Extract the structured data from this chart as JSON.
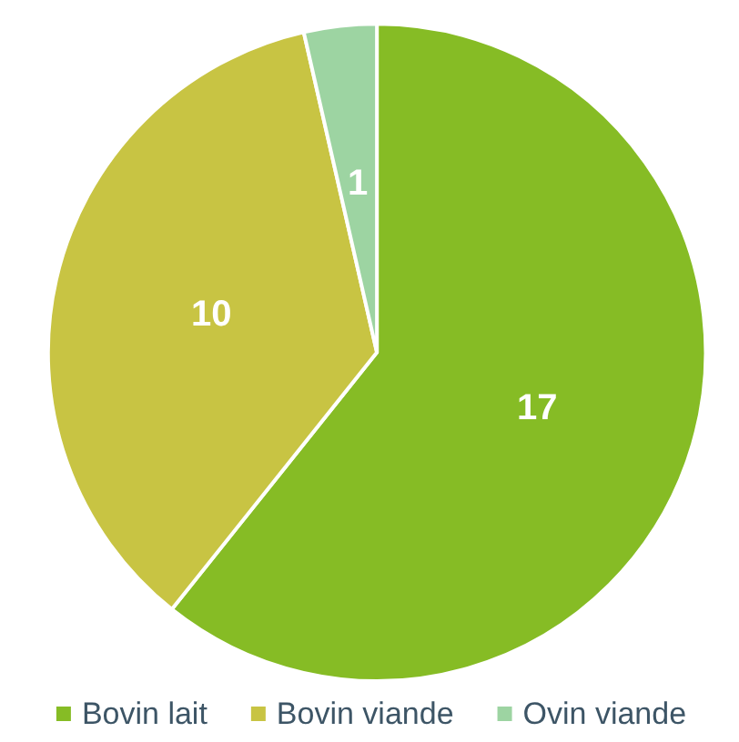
{
  "chart_data": {
    "type": "pie",
    "categories": [
      "Bovin lait",
      "Bovin viande",
      "Ovin viande"
    ],
    "values": [
      17,
      10,
      1
    ],
    "colors": [
      "#86bc25",
      "#c8c443",
      "#9dd4a2"
    ],
    "data_labels": true,
    "legend": "bottom"
  }
}
